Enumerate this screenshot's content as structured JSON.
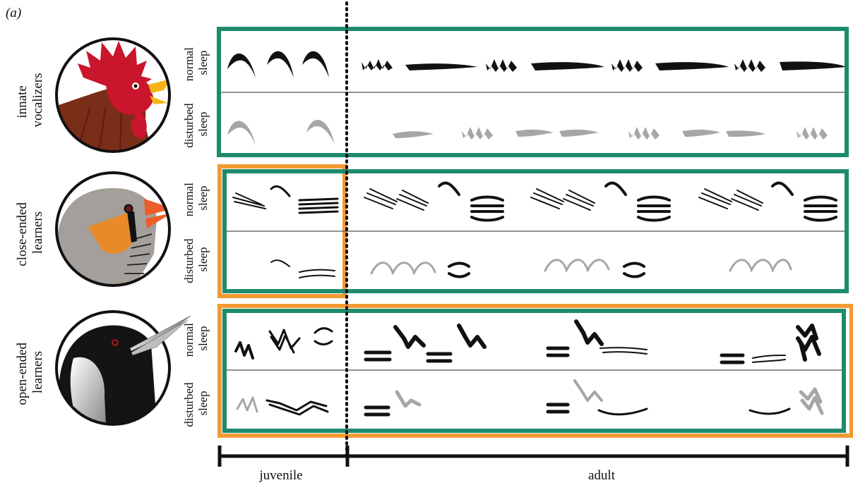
{
  "panel_label": "(a)",
  "colors": {
    "green": "#1e8b6d",
    "orange": "#f39a33",
    "ink": "#111111",
    "grey": "#a6a6a6",
    "divider": "#444444"
  },
  "rows": [
    {
      "id": "innate",
      "label": [
        "innate",
        "vocalizers"
      ],
      "bird": "rooster-icon",
      "normal_label": [
        "normal",
        "sleep"
      ],
      "disturbed_label": [
        "disturbed",
        "sleep"
      ]
    },
    {
      "id": "closed",
      "label": [
        "close-ended",
        "learners"
      ],
      "bird": "zebra-finch-icon",
      "normal_label": [
        "normal",
        "sleep"
      ],
      "disturbed_label": [
        "disturbed",
        "sleep"
      ]
    },
    {
      "id": "open",
      "label": [
        "open-ended",
        "learners"
      ],
      "bird": "magpie-icon",
      "normal_label": [
        "normal",
        "sleep"
      ],
      "disturbed_label": [
        "disturbed",
        "sleep"
      ]
    }
  ],
  "timeline": {
    "juvenile": "juvenile",
    "adult": "adult"
  }
}
